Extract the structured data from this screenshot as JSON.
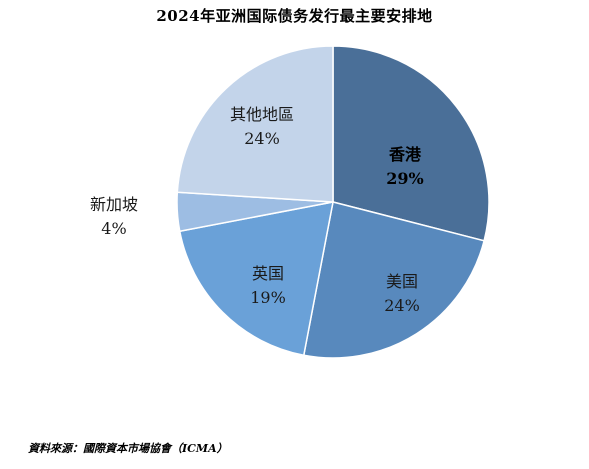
{
  "chart_data": {
    "type": "pie",
    "title": "2024年亚洲国际债务发行最主要安排地",
    "start_angle_deg": 0,
    "direction": "clockwise",
    "slices": [
      {
        "label": "香港",
        "value": 29,
        "value_text": "29%",
        "color": "#4a6f98",
        "label_color": "#000000",
        "bold": true
      },
      {
        "label": "美国",
        "value": 24,
        "value_text": "24%",
        "color": "#5889bd",
        "label_color": "#1a1a1a",
        "bold": false
      },
      {
        "label": "英国",
        "value": 19,
        "value_text": "19%",
        "color": "#6aa1d8",
        "label_color": "#1a1a1a",
        "bold": false
      },
      {
        "label": "新加坡",
        "value": 4,
        "value_text": "4%",
        "color": "#9dbde3",
        "label_color": "#1a1a1a",
        "bold": false
      },
      {
        "label": "其他地區",
        "value": 24,
        "value_text": "24%",
        "color": "#c3d4ea",
        "label_color": "#1a1a1a",
        "bold": false
      }
    ]
  },
  "source": "資料來源：國際資本市場協會（ICMA）"
}
